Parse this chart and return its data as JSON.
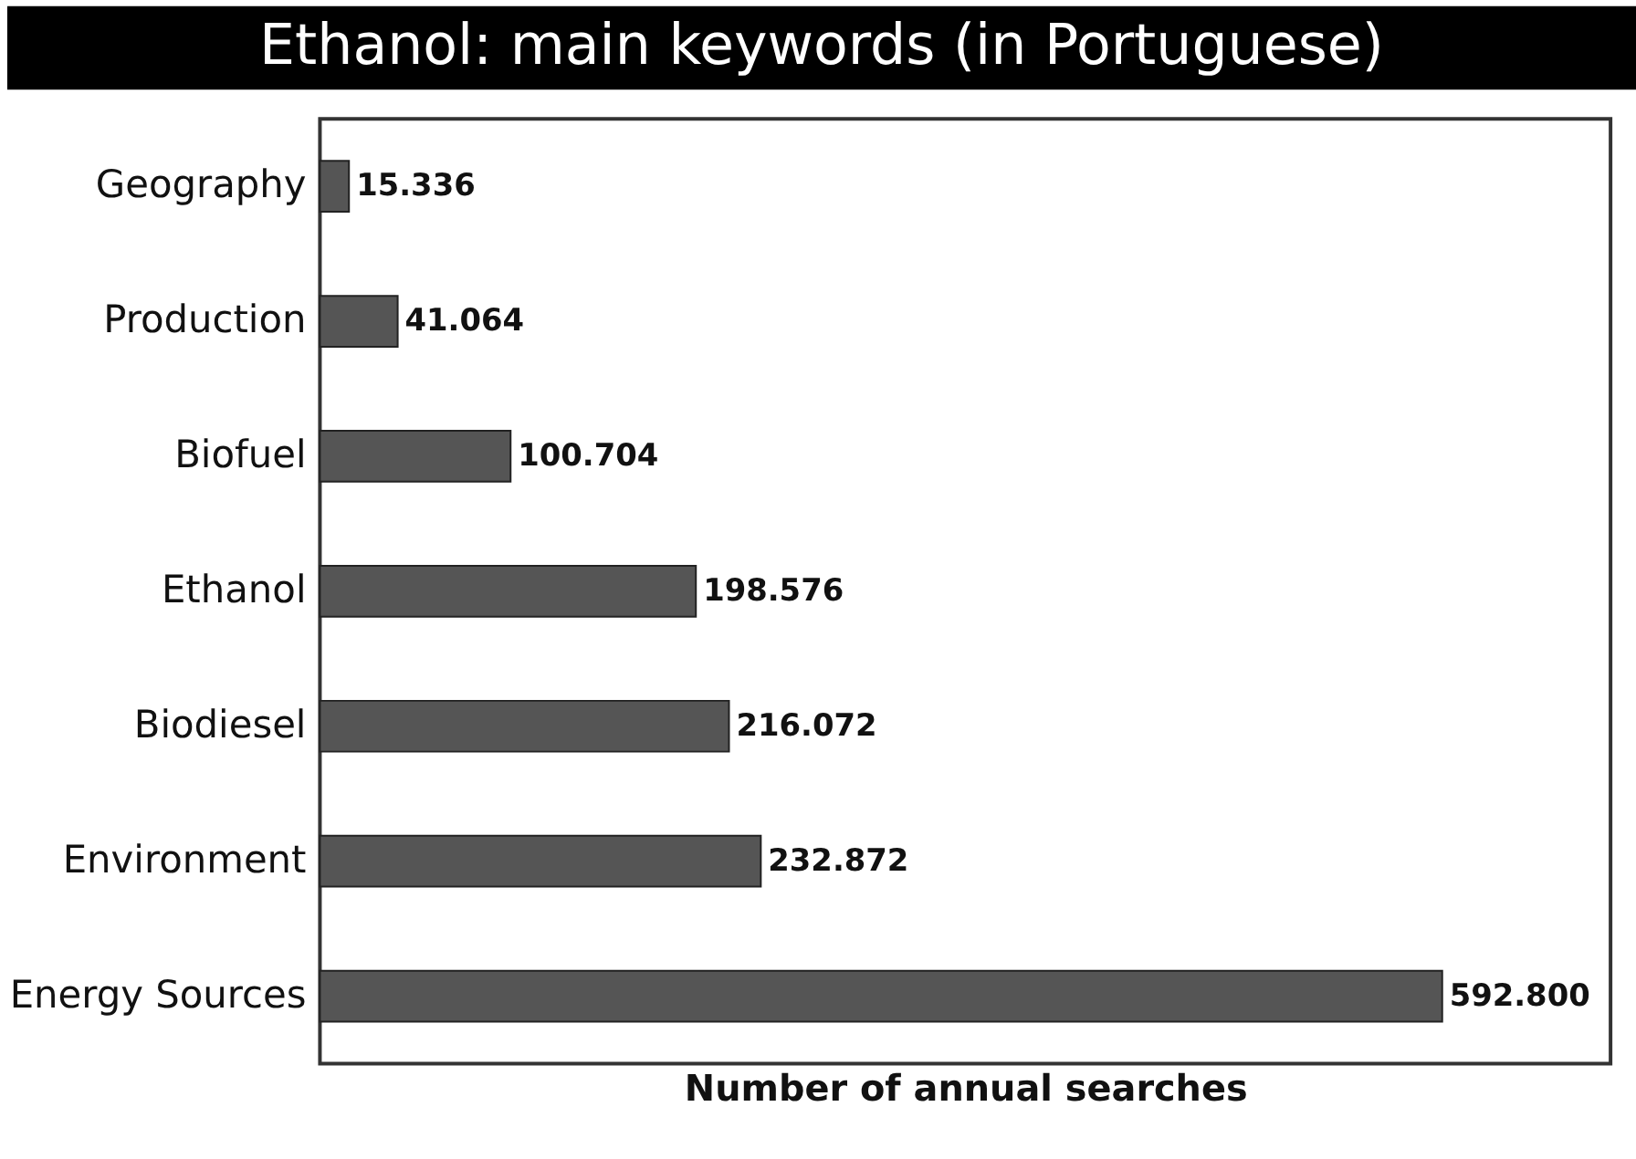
{
  "chart_data": {
    "type": "bar",
    "orientation": "horizontal",
    "title": "Ethanol: main keywords (in Portuguese)",
    "xlabel": "Number of annual searches",
    "categories": [
      "Geography",
      "Production",
      "Biofuel",
      "Ethanol",
      "Biodiesel",
      "Environment",
      "Energy Sources"
    ],
    "values": [
      15336,
      41064,
      100704,
      198576,
      216072,
      232872,
      592800
    ],
    "value_labels": [
      "15.336",
      "41.064",
      "100.704",
      "198.576",
      "216.072",
      "232.872",
      "592.800"
    ],
    "color": "#555555",
    "grid": false
  }
}
